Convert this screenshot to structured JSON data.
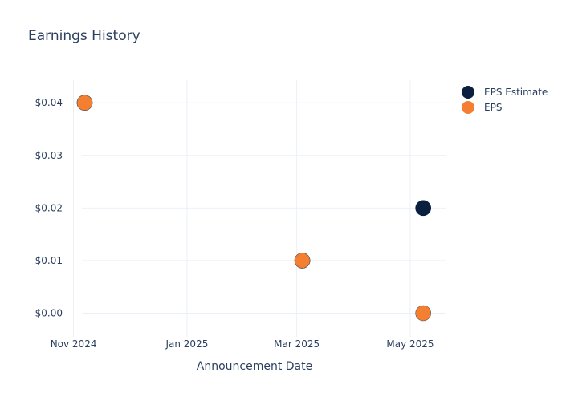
{
  "chart_data": {
    "type": "scatter",
    "title": "Earnings History",
    "xlabel": "Announcement Date",
    "ylabel": "",
    "x_ticks": [
      "Nov 2024",
      "Jan 2025",
      "Mar 2025",
      "May 2025"
    ],
    "x_tick_dates": [
      "2024-11-01",
      "2025-01-01",
      "2025-03-01",
      "2025-05-01"
    ],
    "xlim": [
      "2024-10-27",
      "2025-05-20"
    ],
    "y_ticks": [
      "$0.00",
      "$0.01",
      "$0.02",
      "$0.03",
      "$0.04"
    ],
    "y_tick_values": [
      0,
      0.01,
      0.02,
      0.03,
      0.04
    ],
    "ylim": [
      -0.0045,
      0.0443
    ],
    "grid": true,
    "legend_position": "top-right",
    "series": [
      {
        "name": "EPS Estimate",
        "color": "#0b1f3f",
        "points": [
          {
            "date": "2024-11-07",
            "value": 0.04
          },
          {
            "date": "2025-03-04",
            "value": 0.01
          },
          {
            "date": "2025-05-08",
            "value": 0.02
          }
        ]
      },
      {
        "name": "EPS",
        "color": "#f47f31",
        "points": [
          {
            "date": "2024-11-07",
            "value": 0.04
          },
          {
            "date": "2025-03-04",
            "value": 0.01
          },
          {
            "date": "2025-05-08",
            "value": 0.0
          }
        ]
      }
    ]
  }
}
